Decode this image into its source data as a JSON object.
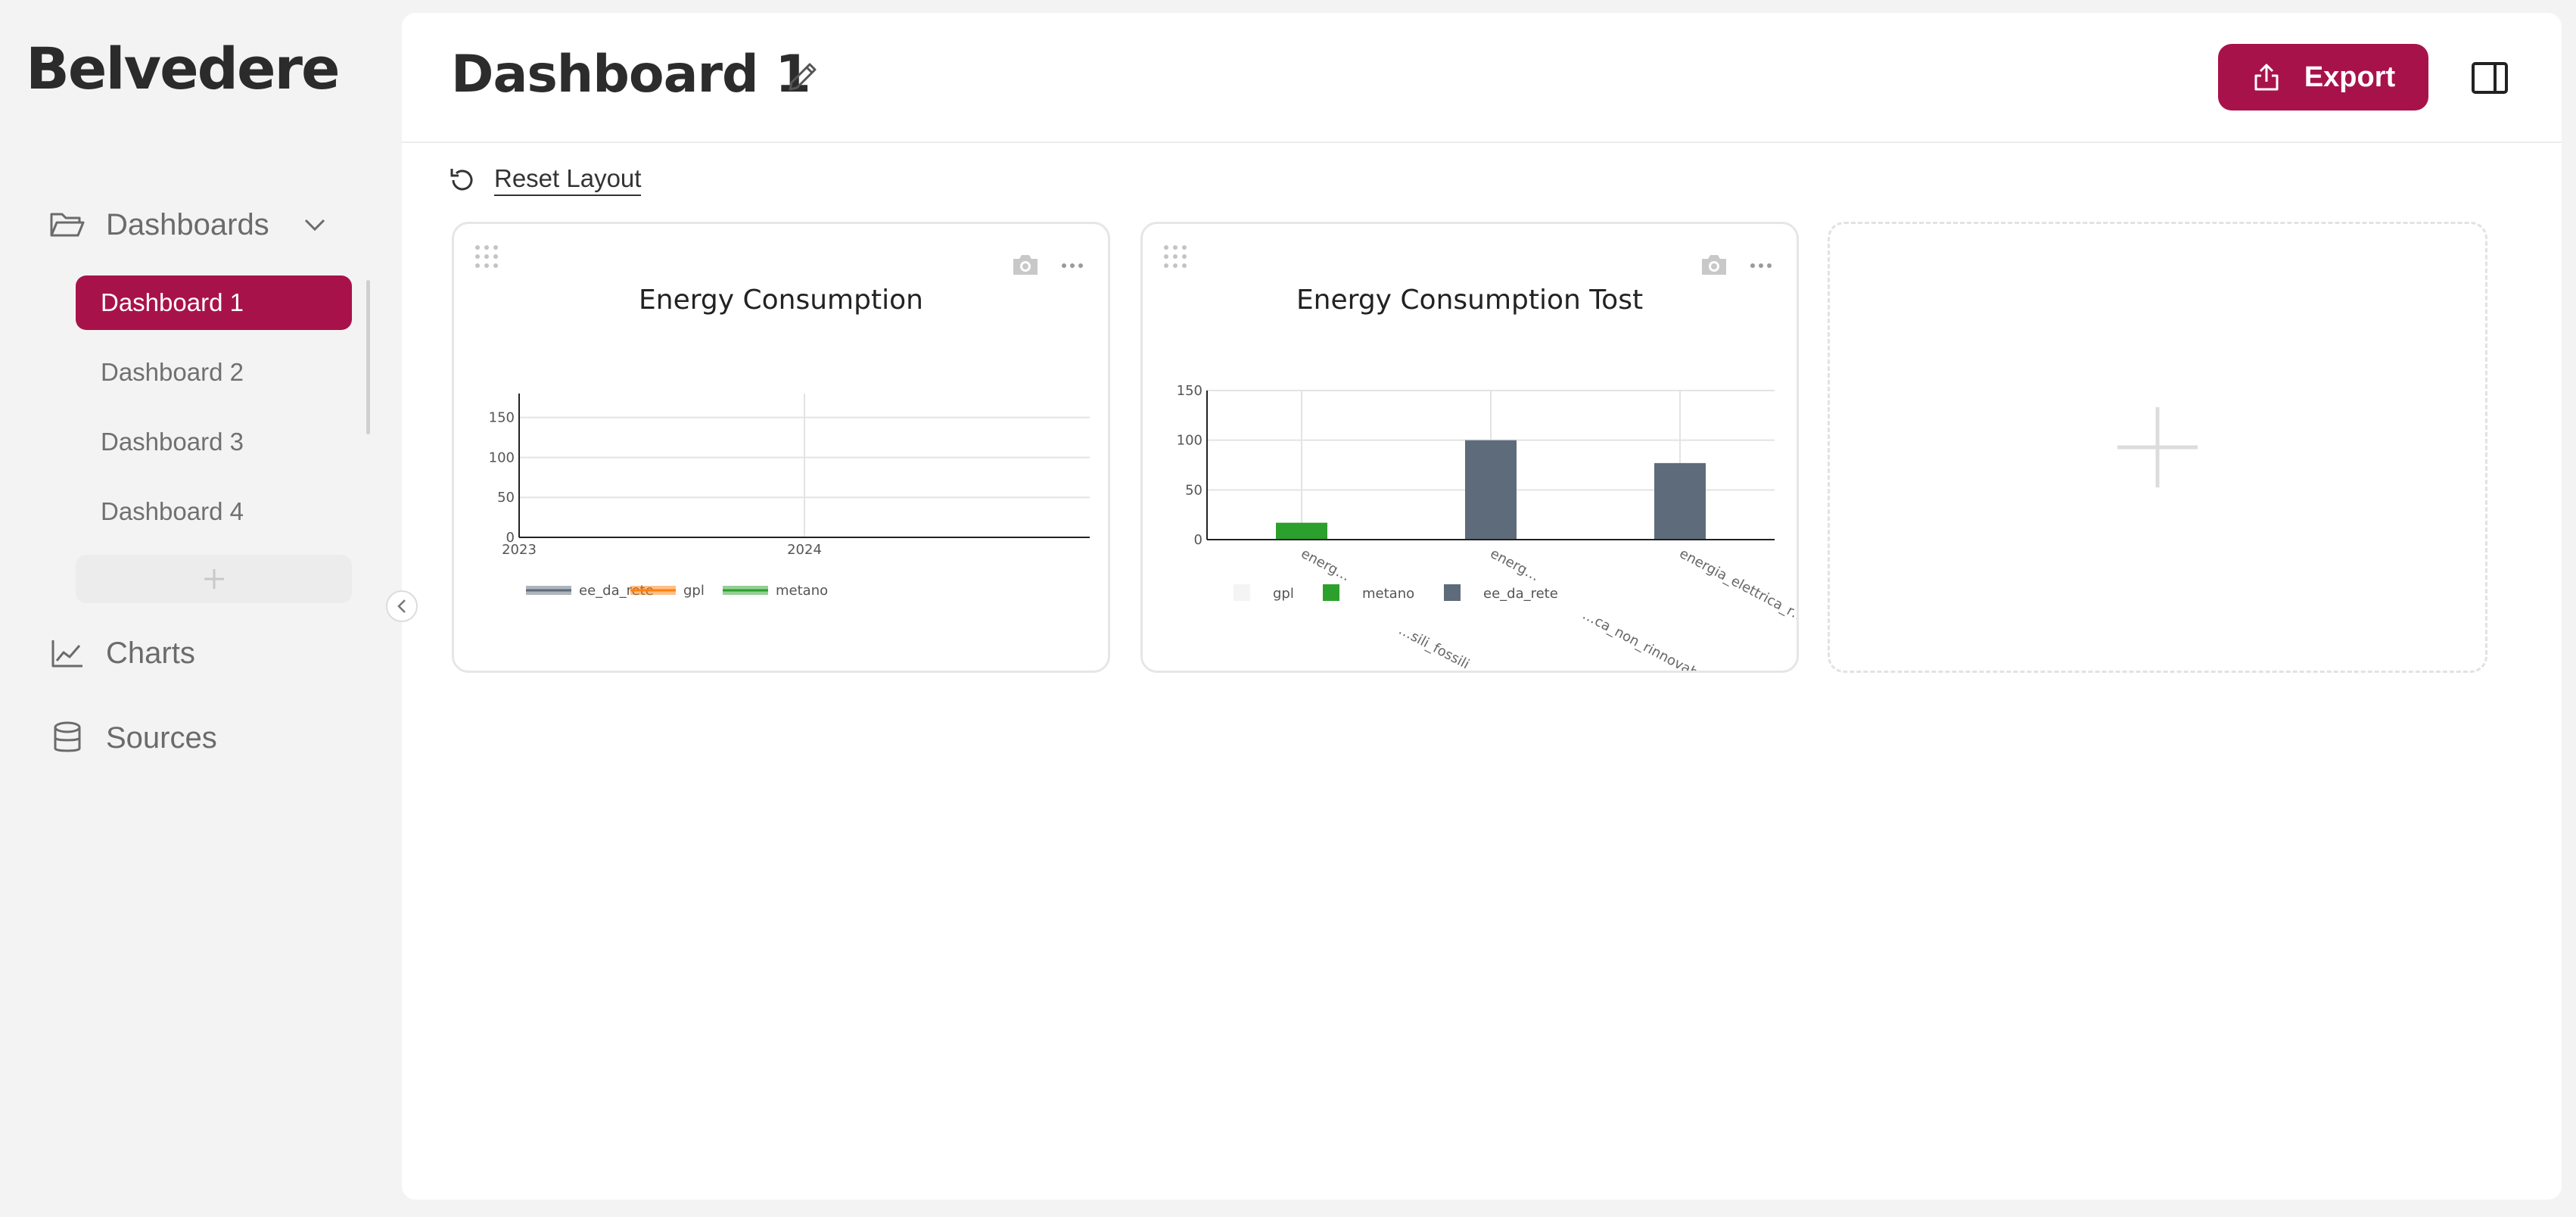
{
  "app": {
    "brand": "Belvedere"
  },
  "sidebar": {
    "sections": [
      {
        "label": "Dashboards",
        "icon": "folder-open-icon"
      },
      {
        "label": "Charts",
        "icon": "line-chart-icon"
      },
      {
        "label": "Sources",
        "icon": "database-icon"
      }
    ],
    "dashboards": [
      "Dashboard 1",
      "Dashboard 2",
      "Dashboard 3",
      "Dashboard 4"
    ],
    "active_dashboard": "Dashboard 1"
  },
  "header": {
    "title": "Dashboard 1",
    "export_label": "Export"
  },
  "toolbar": {
    "reset_label": "Reset Layout"
  },
  "colors": {
    "accent": "#a8124a",
    "series_ee_da_rete": "#5e6b7a",
    "series_gpl": "#ff7f0e",
    "series_metano": "#2ca02c"
  },
  "chart_data": [
    {
      "type": "line",
      "title": "Energy Consumption",
      "x_ticks": [
        "2023",
        "2024"
      ],
      "y_ticks": [
        0,
        50,
        100,
        150
      ],
      "ylim": [
        0,
        180
      ],
      "legend": [
        "ee_da_rete",
        "gpl",
        "metano"
      ],
      "legend_position": "bottom",
      "series": [
        {
          "name": "ee_da_rete",
          "values": []
        },
        {
          "name": "gpl",
          "values": []
        },
        {
          "name": "metano",
          "values": []
        }
      ]
    },
    {
      "type": "bar",
      "title": "Energy Consumption Tost",
      "categories": [
        "energ…",
        "energ…",
        "energia_elettrica_r…"
      ],
      "category_label_fragments": [
        "…sili_fossili",
        "…ca_non_rinnovab…"
      ],
      "y_ticks": [
        0,
        50,
        100,
        150
      ],
      "ylim": [
        0,
        150
      ],
      "legend": [
        "gpl",
        "metano",
        "ee_da_rete"
      ],
      "legend_position": "bottom",
      "series": [
        {
          "name": "gpl",
          "values": [
            0,
            0,
            0
          ]
        },
        {
          "name": "metano",
          "values": [
            17,
            0,
            0
          ]
        },
        {
          "name": "ee_da_rete",
          "values": [
            0,
            100,
            77
          ]
        }
      ]
    }
  ]
}
